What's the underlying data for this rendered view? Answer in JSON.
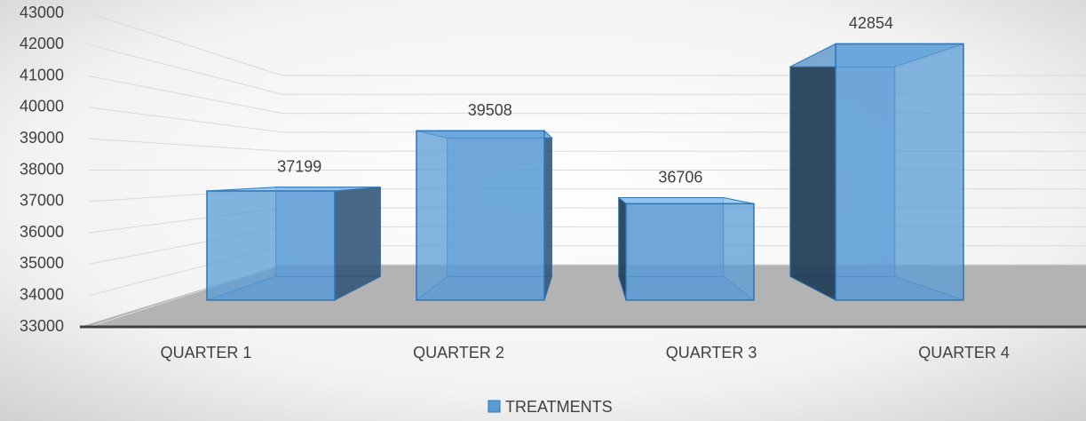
{
  "chart_data": {
    "type": "bar3d",
    "categories": [
      "QUARTER 1",
      "QUARTER 2",
      "QUARTER 3",
      "QUARTER 4"
    ],
    "series": [
      {
        "name": "TREATMENTS",
        "color": "#5b9bd5",
        "values": [
          37199,
          39508,
          36706,
          42854
        ]
      }
    ],
    "ylim": [
      33000,
      43000
    ],
    "yticks": [
      33000,
      34000,
      35000,
      36000,
      37000,
      38000,
      39000,
      40000,
      41000,
      42000,
      43000
    ],
    "grid": true,
    "legend": "bottom",
    "data_labels": true
  }
}
